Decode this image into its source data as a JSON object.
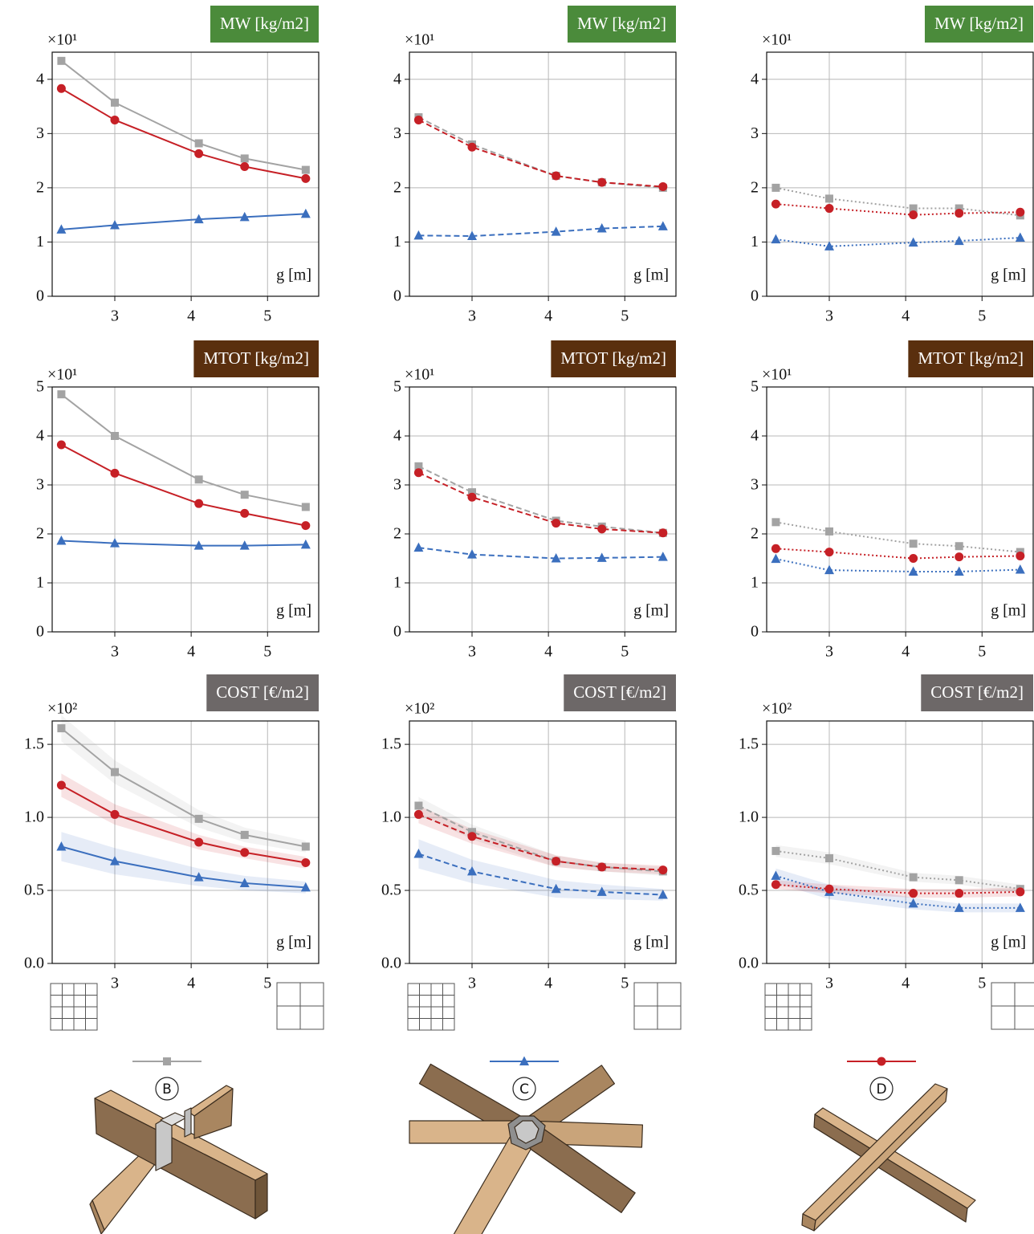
{
  "chart_data": [
    {
      "type": "line",
      "title": "MW [kg/m2]",
      "title_color": "#4b8b3b",
      "y_multiplier": "×10¹",
      "x_label": "g [m]",
      "line_style": "solid",
      "x": [
        2.3,
        3,
        4.1,
        4.7,
        5.5
      ],
      "xlim": [
        2.18,
        5.67
      ],
      "xticks": [
        3,
        4,
        5
      ],
      "ylim": [
        0,
        4.5
      ],
      "yticks": [
        0,
        1,
        2,
        3,
        4
      ],
      "grid": true,
      "series": [
        {
          "color": "#a3a3a3",
          "marker": "square",
          "values": [
            4.34,
            3.57,
            2.82,
            2.54,
            2.33
          ]
        },
        {
          "color": "#3b6fbe",
          "marker": "triangle",
          "values": [
            1.23,
            1.31,
            1.42,
            1.46,
            1.52
          ]
        },
        {
          "color": "#c62026",
          "marker": "circle",
          "values": [
            3.83,
            3.25,
            2.63,
            2.39,
            2.17
          ]
        }
      ]
    },
    {
      "type": "line",
      "title": "MW [kg/m2]",
      "title_color": "#4b8b3b",
      "y_multiplier": "×10¹",
      "x_label": "g [m]",
      "line_style": "dashed",
      "x": [
        2.3,
        3,
        4.1,
        4.7,
        5.5
      ],
      "xlim": [
        2.18,
        5.67
      ],
      "xticks": [
        3,
        4,
        5
      ],
      "ylim": [
        0,
        4.5
      ],
      "yticks": [
        0,
        1,
        2,
        3,
        4
      ],
      "grid": true,
      "series": [
        {
          "color": "#a3a3a3",
          "marker": "square",
          "values": [
            3.3,
            2.8,
            2.22,
            2.1,
            2.0
          ]
        },
        {
          "color": "#3b6fbe",
          "marker": "triangle",
          "values": [
            1.12,
            1.11,
            1.19,
            1.25,
            1.29
          ]
        },
        {
          "color": "#c62026",
          "marker": "circle",
          "values": [
            3.25,
            2.75,
            2.22,
            2.1,
            2.02
          ]
        }
      ]
    },
    {
      "type": "line",
      "title": "MW [kg/m2]",
      "title_color": "#4b8b3b",
      "y_multiplier": "×10¹",
      "x_label": "g [m]",
      "line_style": "dotted",
      "x": [
        2.3,
        3,
        4.1,
        4.7,
        5.5
      ],
      "xlim": [
        2.18,
        5.67
      ],
      "xticks": [
        3,
        4,
        5
      ],
      "ylim": [
        0,
        4.5
      ],
      "yticks": [
        0,
        1,
        2,
        3,
        4
      ],
      "grid": true,
      "series": [
        {
          "color": "#a3a3a3",
          "marker": "square",
          "values": [
            2.0,
            1.8,
            1.62,
            1.62,
            1.49
          ]
        },
        {
          "color": "#3b6fbe",
          "marker": "triangle",
          "values": [
            1.05,
            0.92,
            0.99,
            1.02,
            1.08
          ]
        },
        {
          "color": "#c62026",
          "marker": "circle",
          "values": [
            1.7,
            1.62,
            1.5,
            1.53,
            1.55
          ]
        }
      ]
    },
    {
      "type": "line",
      "title": "MTOT [kg/m2]",
      "title_color": "#5a2f0e",
      "y_multiplier": "×10¹",
      "x_label": "g [m]",
      "line_style": "solid",
      "x": [
        2.3,
        3,
        4.1,
        4.7,
        5.5
      ],
      "xlim": [
        2.18,
        5.67
      ],
      "xticks": [
        3,
        4,
        5
      ],
      "ylim": [
        0,
        5
      ],
      "yticks": [
        0,
        1,
        2,
        3,
        4,
        5
      ],
      "grid": true,
      "series": [
        {
          "color": "#a3a3a3",
          "marker": "square",
          "values": [
            4.85,
            4.0,
            3.11,
            2.8,
            2.55
          ]
        },
        {
          "color": "#3b6fbe",
          "marker": "triangle",
          "values": [
            1.86,
            1.81,
            1.76,
            1.76,
            1.78
          ]
        },
        {
          "color": "#c62026",
          "marker": "circle",
          "values": [
            3.82,
            3.24,
            2.62,
            2.42,
            2.17
          ]
        }
      ]
    },
    {
      "type": "line",
      "title": "MTOT [kg/m2]",
      "title_color": "#5a2f0e",
      "y_multiplier": "×10¹",
      "x_label": "g [m]",
      "line_style": "dashed",
      "x": [
        2.3,
        3,
        4.1,
        4.7,
        5.5
      ],
      "xlim": [
        2.18,
        5.67
      ],
      "xticks": [
        3,
        4,
        5
      ],
      "ylim": [
        0,
        5
      ],
      "yticks": [
        0,
        1,
        2,
        3,
        4,
        5
      ],
      "grid": true,
      "series": [
        {
          "color": "#a3a3a3",
          "marker": "square",
          "values": [
            3.38,
            2.85,
            2.27,
            2.15,
            2.02
          ]
        },
        {
          "color": "#3b6fbe",
          "marker": "triangle",
          "values": [
            1.72,
            1.58,
            1.5,
            1.51,
            1.53
          ]
        },
        {
          "color": "#c62026",
          "marker": "circle",
          "values": [
            3.25,
            2.75,
            2.22,
            2.1,
            2.02
          ]
        }
      ]
    },
    {
      "type": "line",
      "title": "MTOT [kg/m2]",
      "title_color": "#5a2f0e",
      "y_multiplier": "×10¹",
      "x_label": "g [m]",
      "line_style": "dotted",
      "x": [
        2.3,
        3,
        4.1,
        4.7,
        5.5
      ],
      "xlim": [
        2.18,
        5.67
      ],
      "xticks": [
        3,
        4,
        5
      ],
      "ylim": [
        0,
        5
      ],
      "yticks": [
        0,
        1,
        2,
        3,
        4,
        5
      ],
      "grid": true,
      "series": [
        {
          "color": "#a3a3a3",
          "marker": "square",
          "values": [
            2.24,
            2.05,
            1.8,
            1.75,
            1.63
          ]
        },
        {
          "color": "#3b6fbe",
          "marker": "triangle",
          "values": [
            1.49,
            1.26,
            1.23,
            1.23,
            1.27
          ]
        },
        {
          "color": "#c62026",
          "marker": "circle",
          "values": [
            1.7,
            1.63,
            1.5,
            1.53,
            1.55
          ]
        }
      ]
    },
    {
      "type": "line",
      "title": "COST [€/m2]",
      "title_color": "#6d6868",
      "y_multiplier": "×10²",
      "x_label": "g [m]",
      "line_style": "solid",
      "x": [
        2.3,
        3,
        4.1,
        4.7,
        5.5
      ],
      "xlim": [
        2.18,
        5.67
      ],
      "xticks": [
        3,
        4,
        5
      ],
      "ylim": [
        0,
        1.66
      ],
      "yticks": [
        {
          "value": 0,
          "label": "0.0"
        },
        0.5,
        {
          "value": 1,
          "label": "1.0"
        },
        1.5
      ],
      "grid": true,
      "series": [
        {
          "color": "#a3a3a3",
          "marker": "square",
          "values": [
            1.61,
            1.31,
            0.99,
            0.88,
            0.8
          ],
          "errors": [
            0.09,
            0.08,
            0.06,
            0.05,
            0.04
          ]
        },
        {
          "color": "#3b6fbe",
          "marker": "triangle",
          "values": [
            0.8,
            0.7,
            0.59,
            0.55,
            0.52
          ],
          "errors": [
            0.1,
            0.09,
            0.06,
            0.05,
            0.04
          ]
        },
        {
          "color": "#c62026",
          "marker": "circle",
          "values": [
            1.22,
            1.02,
            0.83,
            0.76,
            0.69
          ],
          "errors": [
            0.08,
            0.07,
            0.05,
            0.04,
            0.04
          ]
        }
      ]
    },
    {
      "type": "line",
      "title": "COST [€/m2]",
      "title_color": "#6d6868",
      "y_multiplier": "×10²",
      "x_label": "g [m]",
      "line_style": "dashed",
      "x": [
        2.3,
        3,
        4.1,
        4.7,
        5.5
      ],
      "xlim": [
        2.18,
        5.67
      ],
      "xticks": [
        3,
        4,
        5
      ],
      "ylim": [
        0,
        1.66
      ],
      "yticks": [
        {
          "value": 0,
          "label": "0.0"
        },
        0.5,
        {
          "value": 1,
          "label": "1.0"
        },
        1.5
      ],
      "grid": true,
      "series": [
        {
          "color": "#a3a3a3",
          "marker": "square",
          "values": [
            1.08,
            0.9,
            0.7,
            0.66,
            0.63
          ],
          "errors": [
            0.06,
            0.05,
            0.04,
            0.03,
            0.03
          ]
        },
        {
          "color": "#3b6fbe",
          "marker": "triangle",
          "values": [
            0.75,
            0.63,
            0.51,
            0.49,
            0.47
          ],
          "errors": [
            0.1,
            0.08,
            0.06,
            0.05,
            0.04
          ]
        },
        {
          "color": "#c62026",
          "marker": "circle",
          "values": [
            1.02,
            0.87,
            0.7,
            0.66,
            0.64
          ],
          "errors": [
            0.06,
            0.05,
            0.04,
            0.03,
            0.03
          ]
        }
      ]
    },
    {
      "type": "line",
      "title": "COST [€/m2]",
      "title_color": "#6d6868",
      "y_multiplier": "×10²",
      "x_label": "g [m]",
      "line_style": "dotted",
      "x": [
        2.3,
        3,
        4.1,
        4.7,
        5.5
      ],
      "xlim": [
        2.18,
        5.67
      ],
      "xticks": [
        3,
        4,
        5
      ],
      "ylim": [
        0,
        1.66
      ],
      "yticks": [
        {
          "value": 0,
          "label": "0.0"
        },
        0.5,
        {
          "value": 1,
          "label": "1.0"
        },
        1.5
      ],
      "grid": true,
      "series": [
        {
          "color": "#a3a3a3",
          "marker": "square",
          "values": [
            0.77,
            0.72,
            0.59,
            0.57,
            0.51
          ],
          "errors": [
            0.04,
            0.04,
            0.03,
            0.03,
            0.03
          ]
        },
        {
          "color": "#3b6fbe",
          "marker": "triangle",
          "values": [
            0.6,
            0.49,
            0.41,
            0.38,
            0.38
          ],
          "errors": [
            0.05,
            0.05,
            0.04,
            0.03,
            0.03
          ]
        },
        {
          "color": "#c62026",
          "marker": "circle",
          "values": [
            0.54,
            0.51,
            0.48,
            0.48,
            0.49
          ],
          "errors": [
            0.03,
            0.03,
            0.03,
            0.03,
            0.03
          ]
        }
      ]
    }
  ],
  "legend": [
    {
      "name": "B",
      "color": "#a3a3a3",
      "marker": "square"
    },
    {
      "name": "C",
      "color": "#3b6fbe",
      "marker": "triangle"
    },
    {
      "name": "D",
      "color": "#c62026",
      "marker": "circle"
    }
  ]
}
